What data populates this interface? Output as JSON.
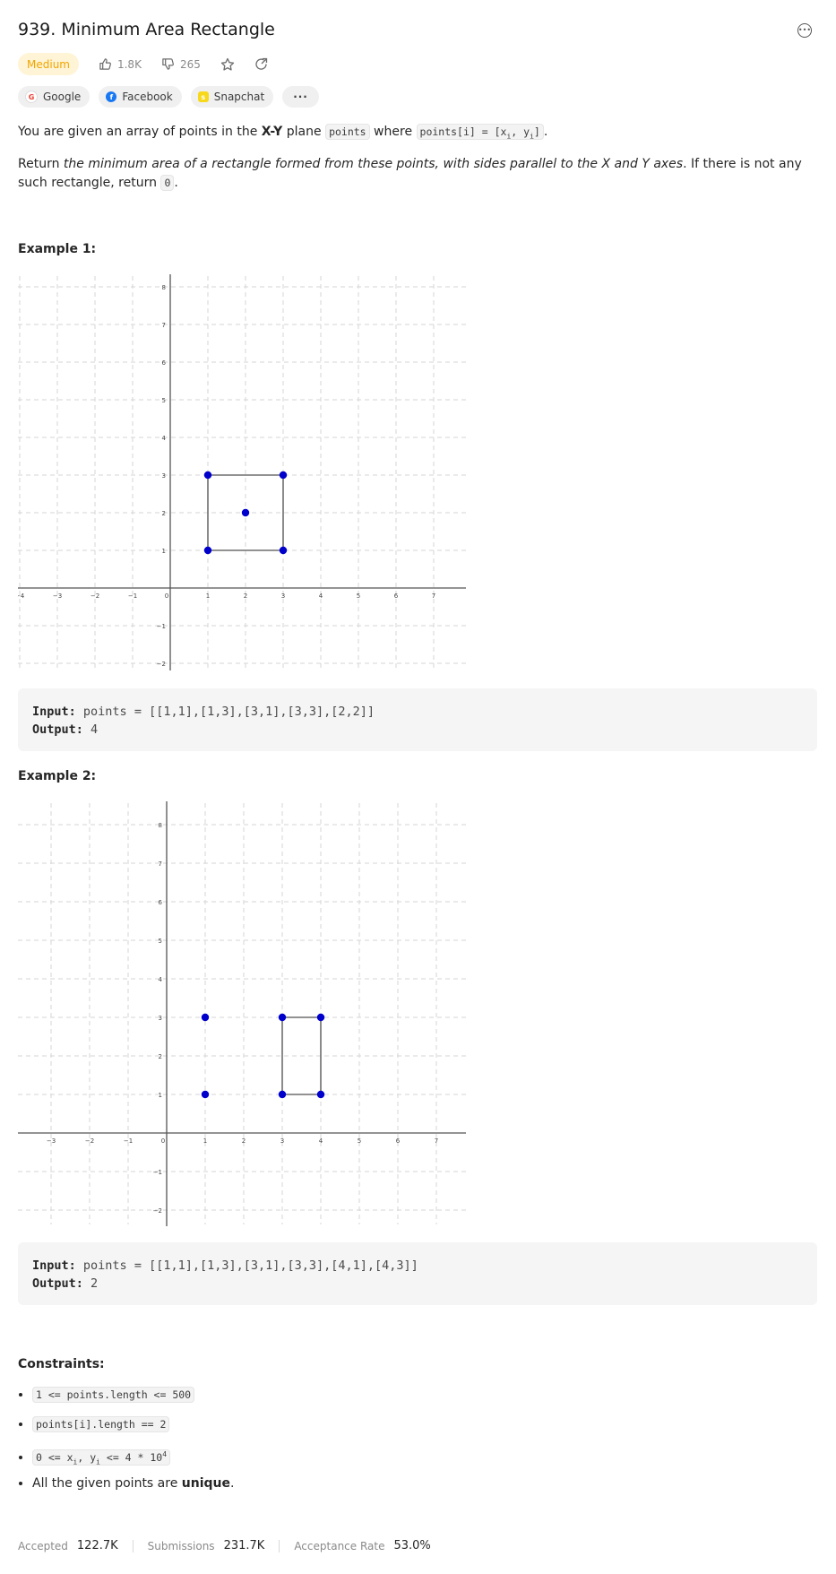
{
  "problem": {
    "title": "939. Minimum Area Rectangle",
    "difficulty": "Medium",
    "likes": "1.8K",
    "dislikes": "265"
  },
  "icons": {
    "more": "more-horizontal-icon",
    "like": "thumbs-up-icon",
    "dislike": "thumbs-down-icon",
    "favorite": "star-icon",
    "share": "share-icon"
  },
  "companies": [
    {
      "name": "Google",
      "color": "#ea4335",
      "glyph": "G"
    },
    {
      "name": "Facebook",
      "color": "#1877f2",
      "glyph": "f"
    },
    {
      "name": "Snapchat",
      "color": "#f7d81b",
      "glyph": "s"
    }
  ],
  "companies_more": "···",
  "description": {
    "p1_a": "You are given an array of points in the ",
    "p1_bold": "X-Y",
    "p1_b": " plane ",
    "p1_code1": "points",
    "p1_c": " where ",
    "p1_code2_a": "points[i] = [x",
    "p1_code2_sub1": "i",
    "p1_code2_b": ", y",
    "p1_code2_sub2": "i",
    "p1_code2_c": "]",
    "p1_end": ".",
    "p2_a": "Return ",
    "p2_italic": "the minimum area of a rectangle formed from these points, with sides parallel to the X and Y axes",
    "p2_b": ". If there is not any such rectangle, return ",
    "p2_code": "0",
    "p2_end": "."
  },
  "examples": [
    {
      "heading": "Example 1:",
      "input_label": "Input:",
      "input_value": "points = [[1,1],[1,3],[3,1],[3,3],[2,2]]",
      "output_label": "Output:",
      "output_value": "4",
      "graph": {
        "x_ticks": [
          "−4",
          "−3",
          "−2",
          "−1",
          "0",
          "1",
          "2",
          "3",
          "4",
          "5",
          "6",
          "7"
        ],
        "y_ticks": [
          "8",
          "7",
          "6",
          "5",
          "4",
          "3",
          "2",
          "1",
          "−1",
          "−2"
        ],
        "points": [
          [
            1,
            1
          ],
          [
            1,
            3
          ],
          [
            3,
            1
          ],
          [
            3,
            3
          ],
          [
            2,
            2
          ]
        ],
        "rectangle": [
          [
            1,
            1
          ],
          [
            3,
            1
          ],
          [
            3,
            3
          ],
          [
            1,
            3
          ]
        ]
      }
    },
    {
      "heading": "Example 2:",
      "input_label": "Input:",
      "input_value": "points = [[1,1],[1,3],[3,1],[3,3],[4,1],[4,3]]",
      "output_label": "Output:",
      "output_value": "2",
      "graph": {
        "x_ticks": [
          "−4",
          "−3",
          "−2",
          "−1",
          "0",
          "1",
          "2",
          "3",
          "4",
          "5",
          "6",
          "7"
        ],
        "y_ticks": [
          "8",
          "7",
          "6",
          "5",
          "4",
          "3",
          "2",
          "1",
          "−1",
          "−2"
        ],
        "points": [
          [
            1,
            1
          ],
          [
            1,
            3
          ],
          [
            3,
            1
          ],
          [
            3,
            3
          ],
          [
            4,
            1
          ],
          [
            4,
            3
          ]
        ],
        "rectangle": [
          [
            3,
            1
          ],
          [
            4,
            1
          ],
          [
            4,
            3
          ],
          [
            3,
            3
          ]
        ]
      }
    }
  ],
  "constraints": {
    "heading": "Constraints:",
    "c1": "1 <= points.length <= 500",
    "c2": "points[i].length == 2",
    "c3_a": "0 <= x",
    "c3_sub1": "i",
    "c3_b": ", y",
    "c3_sub2": "i",
    "c3_c": " <= 4 * 10",
    "c3_sup": "4",
    "c4_a": "All the given points are ",
    "c4_bold": "unique",
    "c4_end": "."
  },
  "stats": {
    "accepted_label": "Accepted",
    "accepted_value": "122.7K",
    "submissions_label": "Submissions",
    "submissions_value": "231.7K",
    "rate_label": "Acceptance Rate",
    "rate_value": "53.0%"
  },
  "colors": {
    "point": "#0000cc",
    "rectangle": "#6e6e6e",
    "grid": "#d6d6d6",
    "axis": "#555555",
    "medium": "#f0a500"
  }
}
